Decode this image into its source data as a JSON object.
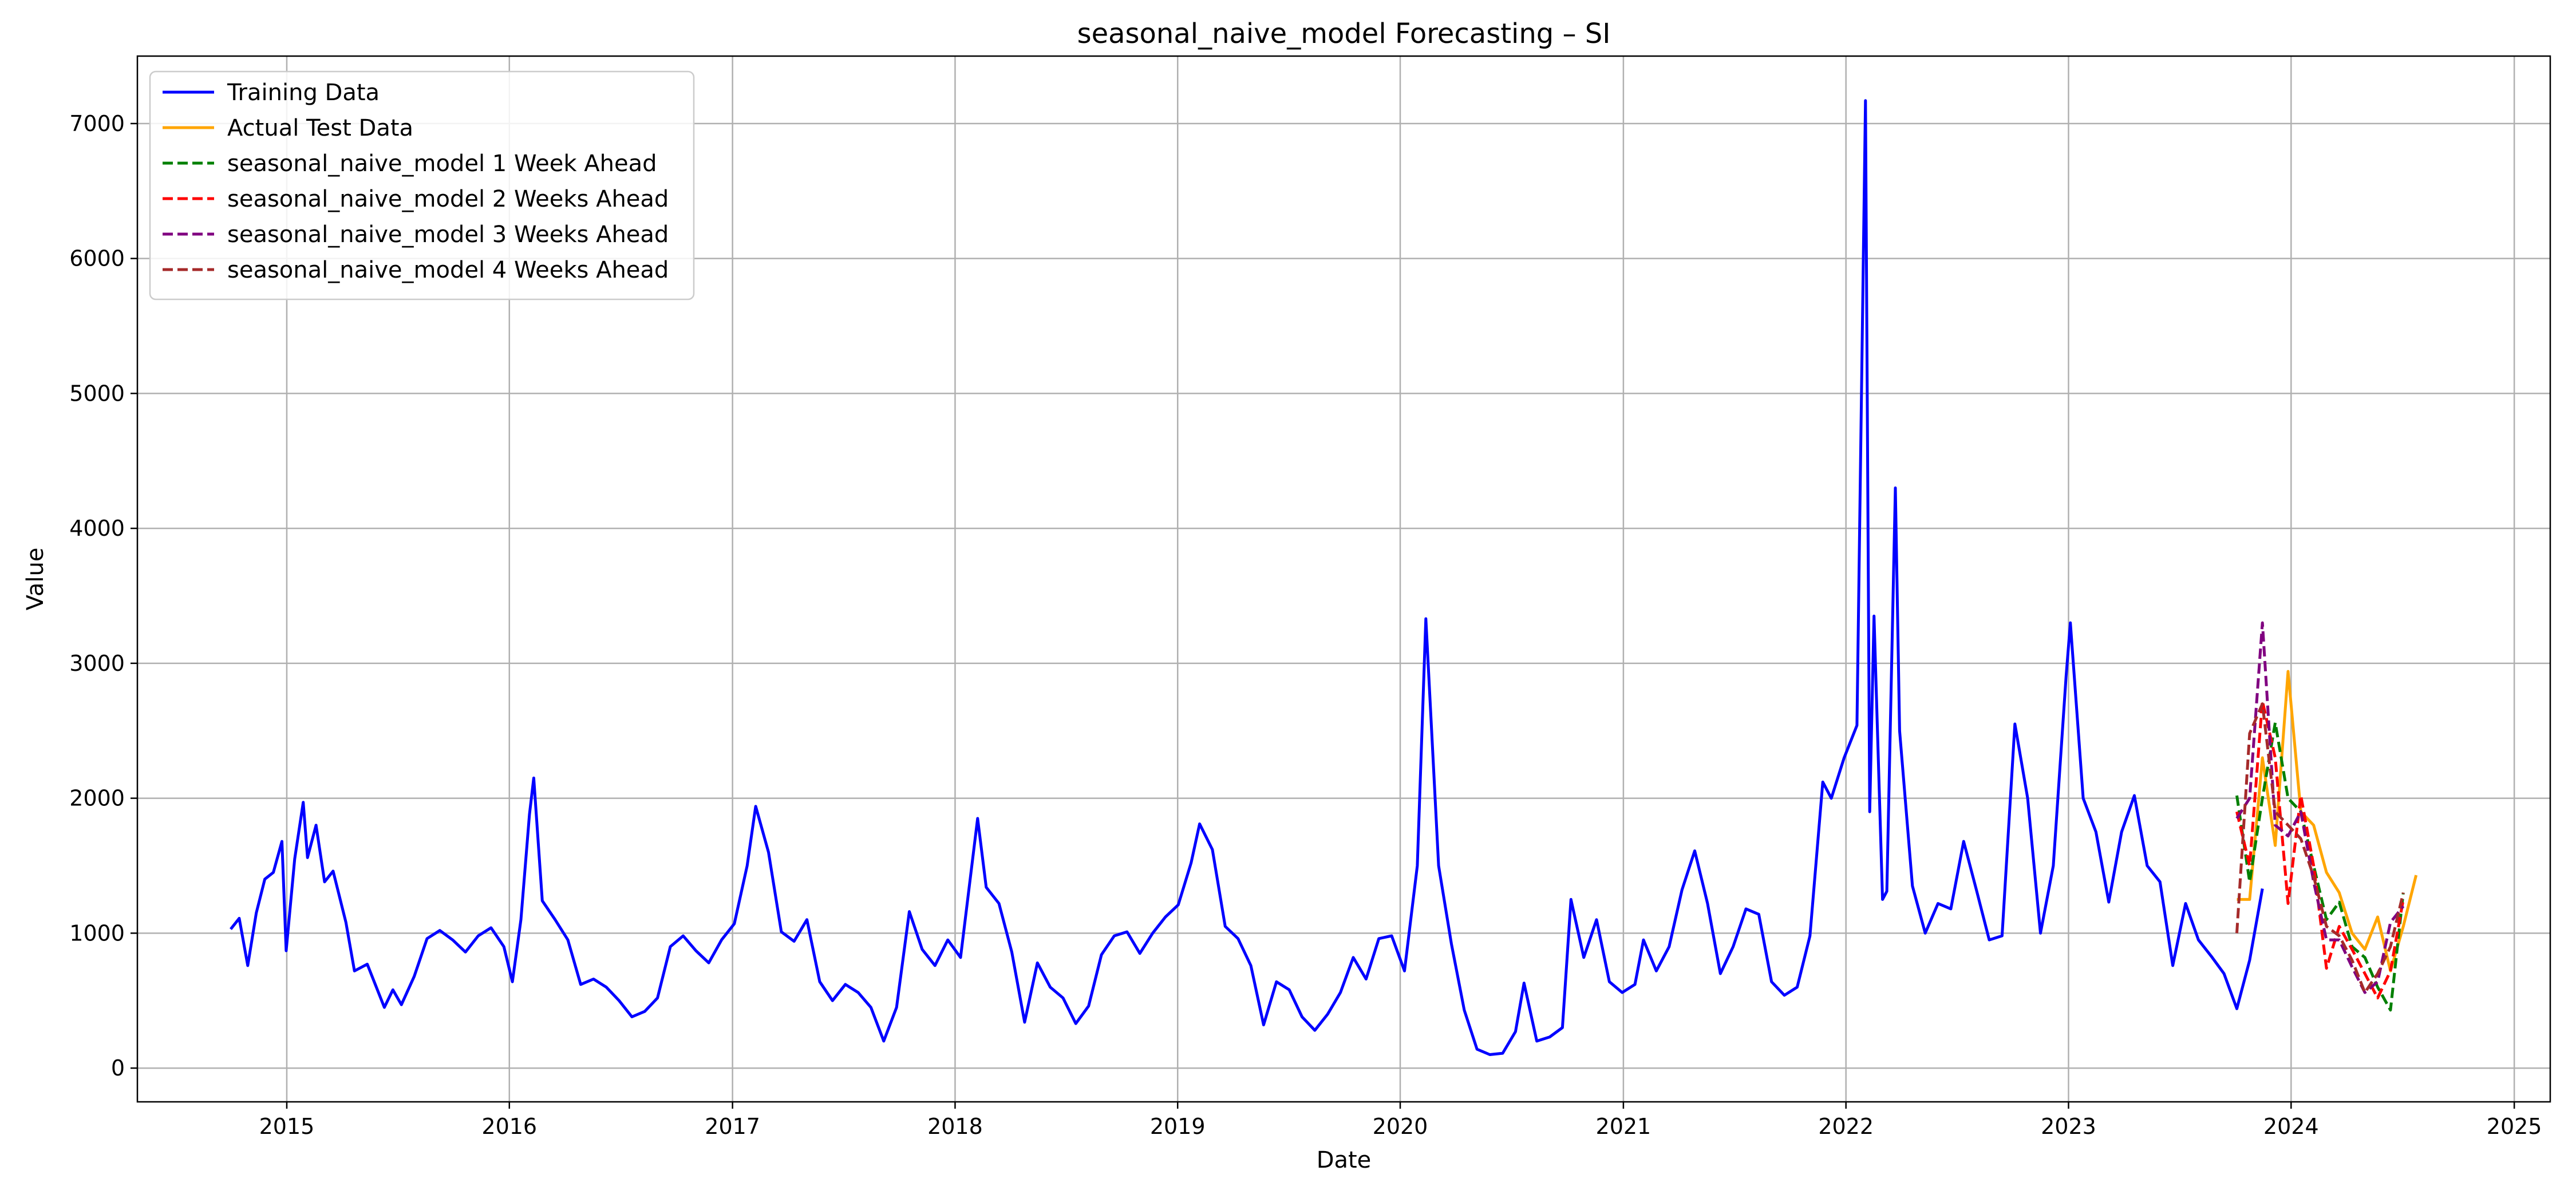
{
  "chart_data": {
    "type": "line",
    "title": "seasonal_naive_model Forecasting – SI",
    "xlabel": "Date",
    "ylabel": "Value",
    "x_type": "date",
    "xlim": [
      "2014-05-01",
      "2025-03-01"
    ],
    "ylim": [
      -250,
      7500
    ],
    "x_ticks": [
      "2015",
      "2016",
      "2017",
      "2018",
      "2019",
      "2020",
      "2021",
      "2022",
      "2023",
      "2024",
      "2025"
    ],
    "y_ticks": [
      0,
      1000,
      2000,
      3000,
      4000,
      5000,
      6000,
      7000
    ],
    "grid": true,
    "legend_position": "top-left",
    "series": [
      {
        "name": "Training Data",
        "color": "#0000ff",
        "style": "solid",
        "points": [
          [
            "2014-10-01",
            1030
          ],
          [
            "2014-10-15",
            1110
          ],
          [
            "2014-10-29",
            760
          ],
          [
            "2014-11-12",
            1150
          ],
          [
            "2014-11-26",
            1400
          ],
          [
            "2014-12-10",
            1450
          ],
          [
            "2014-12-24",
            1680
          ],
          [
            "2014-12-31",
            870
          ],
          [
            "2015-01-14",
            1550
          ],
          [
            "2015-01-28",
            1970
          ],
          [
            "2015-02-04",
            1560
          ],
          [
            "2015-02-18",
            1800
          ],
          [
            "2015-03-04",
            1380
          ],
          [
            "2015-03-18",
            1460
          ],
          [
            "2015-04-08",
            1080
          ],
          [
            "2015-04-22",
            720
          ],
          [
            "2015-05-13",
            770
          ],
          [
            "2015-05-27",
            610
          ],
          [
            "2015-06-10",
            450
          ],
          [
            "2015-06-24",
            580
          ],
          [
            "2015-07-08",
            470
          ],
          [
            "2015-07-29",
            680
          ],
          [
            "2015-08-19",
            960
          ],
          [
            "2015-09-09",
            1020
          ],
          [
            "2015-09-30",
            950
          ],
          [
            "2015-10-21",
            860
          ],
          [
            "2015-11-11",
            980
          ],
          [
            "2015-12-02",
            1040
          ],
          [
            "2015-12-23",
            900
          ],
          [
            "2016-01-06",
            640
          ],
          [
            "2016-01-20",
            1100
          ],
          [
            "2016-02-03",
            1880
          ],
          [
            "2016-02-10",
            2150
          ],
          [
            "2016-02-24",
            1240
          ],
          [
            "2016-03-16",
            1100
          ],
          [
            "2016-04-06",
            950
          ],
          [
            "2016-04-27",
            620
          ],
          [
            "2016-05-18",
            660
          ],
          [
            "2016-06-08",
            600
          ],
          [
            "2016-06-29",
            500
          ],
          [
            "2016-07-20",
            380
          ],
          [
            "2016-08-10",
            420
          ],
          [
            "2016-08-31",
            520
          ],
          [
            "2016-09-21",
            900
          ],
          [
            "2016-10-12",
            980
          ],
          [
            "2016-11-02",
            870
          ],
          [
            "2016-11-23",
            780
          ],
          [
            "2016-12-14",
            950
          ],
          [
            "2017-01-04",
            1070
          ],
          [
            "2017-01-25",
            1500
          ],
          [
            "2017-02-08",
            1940
          ],
          [
            "2017-03-01",
            1600
          ],
          [
            "2017-03-22",
            1010
          ],
          [
            "2017-04-12",
            940
          ],
          [
            "2017-05-03",
            1100
          ],
          [
            "2017-05-24",
            640
          ],
          [
            "2017-06-14",
            500
          ],
          [
            "2017-07-05",
            620
          ],
          [
            "2017-07-26",
            560
          ],
          [
            "2017-08-16",
            450
          ],
          [
            "2017-09-06",
            200
          ],
          [
            "2017-09-27",
            450
          ],
          [
            "2017-10-18",
            1160
          ],
          [
            "2017-11-08",
            880
          ],
          [
            "2017-11-29",
            760
          ],
          [
            "2017-12-20",
            950
          ],
          [
            "2018-01-10",
            820
          ],
          [
            "2018-02-07",
            1850
          ],
          [
            "2018-02-21",
            1340
          ],
          [
            "2018-03-14",
            1220
          ],
          [
            "2018-04-04",
            860
          ],
          [
            "2018-04-25",
            340
          ],
          [
            "2018-05-16",
            780
          ],
          [
            "2018-06-06",
            600
          ],
          [
            "2018-06-27",
            520
          ],
          [
            "2018-07-18",
            330
          ],
          [
            "2018-08-08",
            460
          ],
          [
            "2018-08-29",
            840
          ],
          [
            "2018-09-19",
            980
          ],
          [
            "2018-10-10",
            1010
          ],
          [
            "2018-10-31",
            850
          ],
          [
            "2018-11-21",
            1000
          ],
          [
            "2018-12-12",
            1120
          ],
          [
            "2019-01-02",
            1210
          ],
          [
            "2019-01-23",
            1520
          ],
          [
            "2019-02-06",
            1810
          ],
          [
            "2019-02-27",
            1620
          ],
          [
            "2019-03-20",
            1050
          ],
          [
            "2019-04-10",
            960
          ],
          [
            "2019-05-01",
            760
          ],
          [
            "2019-05-22",
            320
          ],
          [
            "2019-06-12",
            640
          ],
          [
            "2019-07-03",
            580
          ],
          [
            "2019-07-24",
            380
          ],
          [
            "2019-08-14",
            280
          ],
          [
            "2019-09-04",
            400
          ],
          [
            "2019-09-25",
            560
          ],
          [
            "2019-10-16",
            820
          ],
          [
            "2019-11-06",
            660
          ],
          [
            "2019-11-27",
            960
          ],
          [
            "2019-12-18",
            980
          ],
          [
            "2020-01-08",
            720
          ],
          [
            "2020-01-29",
            1500
          ],
          [
            "2020-02-12",
            3330
          ],
          [
            "2020-03-04",
            1500
          ],
          [
            "2020-03-25",
            920
          ],
          [
            "2020-04-15",
            430
          ],
          [
            "2020-05-06",
            140
          ],
          [
            "2020-05-27",
            100
          ],
          [
            "2020-06-17",
            110
          ],
          [
            "2020-07-08",
            270
          ],
          [
            "2020-07-22",
            630
          ],
          [
            "2020-08-12",
            200
          ],
          [
            "2020-09-02",
            230
          ],
          [
            "2020-09-23",
            300
          ],
          [
            "2020-10-07",
            1250
          ],
          [
            "2020-10-28",
            820
          ],
          [
            "2020-11-18",
            1100
          ],
          [
            "2020-12-09",
            640
          ],
          [
            "2020-12-30",
            560
          ],
          [
            "2021-01-20",
            620
          ],
          [
            "2021-02-03",
            950
          ],
          [
            "2021-02-24",
            720
          ],
          [
            "2021-03-17",
            900
          ],
          [
            "2021-04-07",
            1320
          ],
          [
            "2021-04-28",
            1610
          ],
          [
            "2021-05-19",
            1220
          ],
          [
            "2021-06-09",
            700
          ],
          [
            "2021-06-30",
            900
          ],
          [
            "2021-07-21",
            1180
          ],
          [
            "2021-08-11",
            1140
          ],
          [
            "2021-09-01",
            640
          ],
          [
            "2021-09-22",
            540
          ],
          [
            "2021-10-13",
            600
          ],
          [
            "2021-11-03",
            980
          ],
          [
            "2021-11-24",
            2120
          ],
          [
            "2021-12-08",
            2000
          ],
          [
            "2021-12-29",
            2300
          ],
          [
            "2022-01-19",
            2540
          ],
          [
            "2022-02-09",
            1900
          ],
          [
            "2022-03-02",
            1250
          ],
          [
            "2022-03-23",
            4300
          ],
          [
            "2022-02-02",
            7170
          ],
          [
            "2022-02-16",
            3350
          ],
          [
            "2022-03-09",
            1310
          ],
          [
            "2022-03-30",
            2500
          ],
          [
            "2022-04-20",
            1350
          ],
          [
            "2022-05-11",
            1000
          ],
          [
            "2022-06-01",
            1220
          ],
          [
            "2022-06-22",
            1180
          ],
          [
            "2022-07-13",
            1680
          ],
          [
            "2022-08-03",
            1320
          ],
          [
            "2022-08-24",
            950
          ],
          [
            "2022-09-14",
            980
          ],
          [
            "2022-10-05",
            2550
          ],
          [
            "2022-10-26",
            2000
          ],
          [
            "2022-11-16",
            1000
          ],
          [
            "2022-12-07",
            1500
          ],
          [
            "2022-12-28",
            2900
          ],
          [
            "2023-01-04",
            3300
          ],
          [
            "2023-01-25",
            2000
          ],
          [
            "2023-02-15",
            1750
          ],
          [
            "2023-03-08",
            1230
          ],
          [
            "2023-03-29",
            1750
          ],
          [
            "2023-04-19",
            2020
          ],
          [
            "2023-05-10",
            1500
          ],
          [
            "2023-05-31",
            1380
          ],
          [
            "2023-06-21",
            760
          ],
          [
            "2023-07-12",
            1220
          ],
          [
            "2023-08-02",
            950
          ],
          [
            "2023-08-23",
            830
          ],
          [
            "2023-09-13",
            700
          ],
          [
            "2023-10-04",
            440
          ],
          [
            "2023-10-25",
            800
          ],
          [
            "2023-11-15",
            1330
          ]
        ]
      },
      {
        "name": "Actual Test Data",
        "color": "#ffa500",
        "style": "solid",
        "points": [
          [
            "2023-10-04",
            1250
          ],
          [
            "2023-10-25",
            1250
          ],
          [
            "2023-11-15",
            2300
          ],
          [
            "2023-12-06",
            1650
          ],
          [
            "2023-12-27",
            2940
          ],
          [
            "2024-01-17",
            1900
          ],
          [
            "2024-02-07",
            1800
          ],
          [
            "2024-02-28",
            1450
          ],
          [
            "2024-03-20",
            1300
          ],
          [
            "2024-04-10",
            1000
          ],
          [
            "2024-05-01",
            880
          ],
          [
            "2024-05-22",
            1120
          ],
          [
            "2024-06-12",
            720
          ],
          [
            "2024-07-03",
            1050
          ],
          [
            "2024-07-24",
            1430
          ]
        ]
      },
      {
        "name": "seasonal_naive_model 1 Week Ahead",
        "color": "#008000",
        "style": "dashed",
        "points": [
          [
            "2023-10-04",
            2020
          ],
          [
            "2023-10-25",
            1380
          ],
          [
            "2023-11-15",
            2000
          ],
          [
            "2023-12-06",
            2560
          ],
          [
            "2023-12-27",
            2000
          ],
          [
            "2024-01-17",
            1900
          ],
          [
            "2024-02-07",
            1500
          ],
          [
            "2024-02-28",
            1100
          ],
          [
            "2024-03-20",
            1230
          ],
          [
            "2024-04-10",
            900
          ],
          [
            "2024-05-01",
            820
          ],
          [
            "2024-05-22",
            600
          ],
          [
            "2024-06-12",
            430
          ],
          [
            "2024-07-03",
            1300
          ]
        ]
      },
      {
        "name": "seasonal_naive_model 2 Weeks Ahead",
        "color": "#ff0000",
        "style": "dashed",
        "points": [
          [
            "2023-10-04",
            1900
          ],
          [
            "2023-10-25",
            1500
          ],
          [
            "2023-11-15",
            2720
          ],
          [
            "2023-12-06",
            2300
          ],
          [
            "2023-12-27",
            1220
          ],
          [
            "2024-01-17",
            2020
          ],
          [
            "2024-02-07",
            1500
          ],
          [
            "2024-02-28",
            740
          ],
          [
            "2024-03-20",
            1050
          ],
          [
            "2024-04-10",
            880
          ],
          [
            "2024-05-01",
            700
          ],
          [
            "2024-05-22",
            520
          ],
          [
            "2024-06-12",
            720
          ],
          [
            "2024-07-03",
            1250
          ]
        ]
      },
      {
        "name": "seasonal_naive_model 3 Weeks Ahead",
        "color": "#800080",
        "style": "dashed",
        "points": [
          [
            "2023-10-04",
            1850
          ],
          [
            "2023-10-25",
            2000
          ],
          [
            "2023-11-15",
            3300
          ],
          [
            "2023-12-06",
            1800
          ],
          [
            "2023-12-27",
            1720
          ],
          [
            "2024-01-17",
            1900
          ],
          [
            "2024-02-07",
            1380
          ],
          [
            "2024-02-28",
            950
          ],
          [
            "2024-03-20",
            950
          ],
          [
            "2024-04-10",
            750
          ],
          [
            "2024-05-01",
            560
          ],
          [
            "2024-05-22",
            640
          ],
          [
            "2024-06-12",
            1080
          ],
          [
            "2024-07-03",
            1200
          ]
        ]
      },
      {
        "name": "seasonal_naive_model 4 Weeks Ahead",
        "color": "#a52a2a",
        "style": "dashed",
        "points": [
          [
            "2023-10-04",
            1000
          ],
          [
            "2023-10-25",
            2480
          ],
          [
            "2023-11-15",
            2700
          ],
          [
            "2023-12-06",
            1900
          ],
          [
            "2023-12-27",
            1800
          ],
          [
            "2024-01-17",
            1700
          ],
          [
            "2024-02-07",
            1420
          ],
          [
            "2024-02-28",
            1050
          ],
          [
            "2024-03-20",
            980
          ],
          [
            "2024-04-10",
            800
          ],
          [
            "2024-05-01",
            560
          ],
          [
            "2024-05-22",
            700
          ],
          [
            "2024-06-12",
            900
          ],
          [
            "2024-07-03",
            1300
          ]
        ]
      }
    ]
  }
}
